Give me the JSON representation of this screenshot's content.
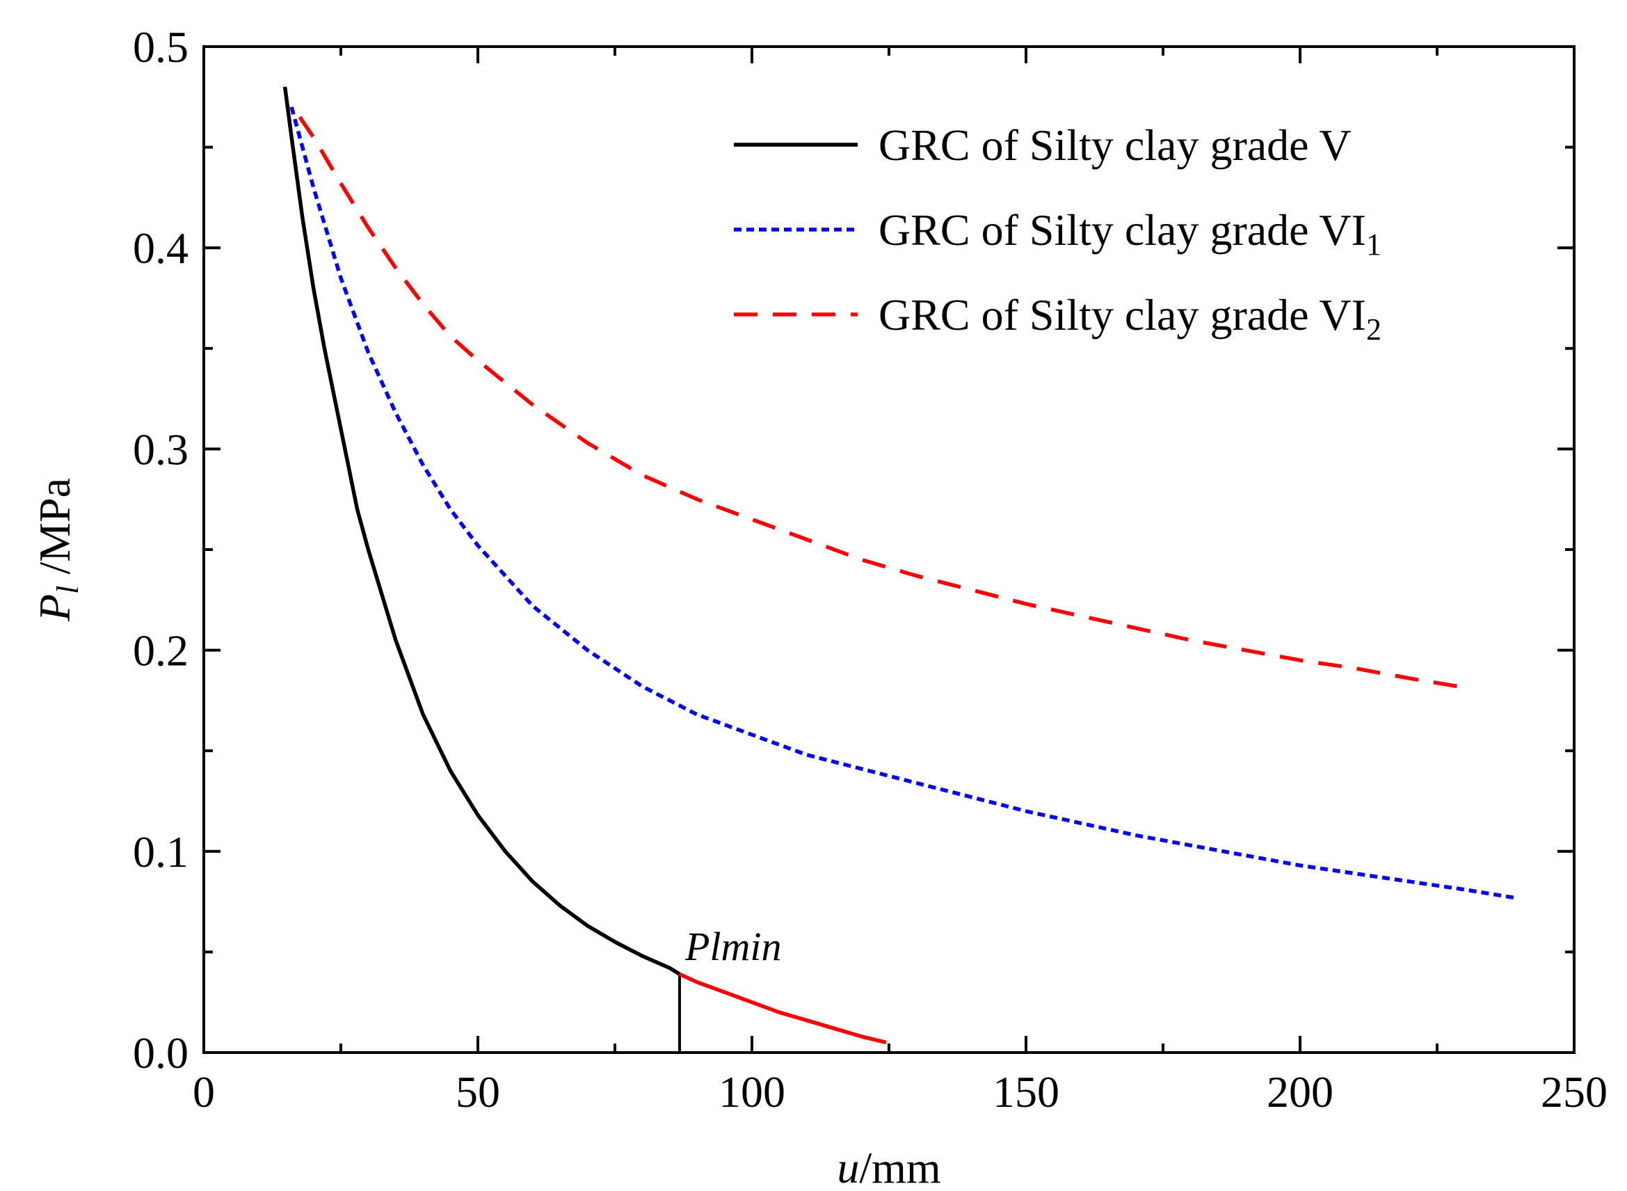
{
  "chart_data": {
    "type": "line",
    "title": "",
    "xlabel": {
      "var": "u",
      "unit": "/mm"
    },
    "ylabel": {
      "var": "P",
      "sub": "l",
      "unit": " /MPa"
    },
    "xlim": [
      0,
      250
    ],
    "ylim": [
      0,
      0.5
    ],
    "xticks": [
      0,
      50,
      100,
      150,
      200,
      250
    ],
    "xtick_labels": [
      "0",
      "50",
      "100",
      "150",
      "200",
      "250"
    ],
    "yticks": [
      0.0,
      0.1,
      0.2,
      0.3,
      0.4,
      0.5
    ],
    "ytick_labels": [
      "0.0",
      "0.1",
      "0.2",
      "0.3",
      "0.4",
      "0.5"
    ],
    "grid": false,
    "legend_position": "top-right",
    "series": [
      {
        "name": "GRC of Silty clay grade V",
        "legend_main": "GRC of Silty clay grade V",
        "legend_sub": "",
        "color": "#000000",
        "style": "solid",
        "x": [
          14.8,
          16,
          18,
          20,
          22,
          25,
          28,
          30,
          35,
          40,
          45,
          50,
          55,
          60,
          65,
          70,
          75,
          80,
          85,
          86.8
        ],
        "y": [
          0.48,
          0.455,
          0.415,
          0.38,
          0.35,
          0.31,
          0.27,
          0.25,
          0.205,
          0.168,
          0.14,
          0.118,
          0.1,
          0.085,
          0.073,
          0.063,
          0.055,
          0.048,
          0.042,
          0.039
        ]
      },
      {
        "name": "Plmin segment",
        "color": "#ff0000",
        "style": "solid",
        "x": [
          86.8,
          90,
          95,
          100,
          105,
          110,
          115,
          120,
          124.5
        ],
        "y": [
          0.039,
          0.035,
          0.03,
          0.025,
          0.02,
          0.016,
          0.012,
          0.008,
          0.005
        ]
      },
      {
        "name": "GRC of Silty clay grade VI1",
        "legend_main": "GRC of Silty clay grade VI",
        "legend_sub": "1",
        "color": "#0000ff",
        "style": "dotted",
        "x": [
          16,
          20,
          25,
          30,
          35,
          40,
          45,
          50,
          60,
          70,
          80,
          90,
          100,
          110,
          120,
          130,
          140,
          150,
          160,
          170,
          180,
          190,
          200,
          210,
          220,
          230,
          239
        ],
        "y": [
          0.47,
          0.43,
          0.385,
          0.348,
          0.318,
          0.292,
          0.27,
          0.252,
          0.222,
          0.2,
          0.182,
          0.168,
          0.158,
          0.148,
          0.141,
          0.134,
          0.127,
          0.12,
          0.114,
          0.108,
          0.103,
          0.098,
          0.093,
          0.089,
          0.085,
          0.081,
          0.077
        ]
      },
      {
        "name": "GRC of Silty clay grade VI2",
        "legend_main": "GRC of Silty clay grade VI",
        "legend_sub": "2",
        "color": "#ff0000",
        "style": "dashed",
        "x": [
          17.5,
          20,
          25,
          30,
          35,
          40,
          45,
          50,
          60,
          70,
          80,
          90,
          100,
          110,
          120,
          130,
          140,
          150,
          160,
          170,
          180,
          190,
          200,
          210,
          220,
          231
        ],
        "y": [
          0.465,
          0.455,
          0.432,
          0.41,
          0.39,
          0.372,
          0.356,
          0.344,
          0.322,
          0.303,
          0.287,
          0.275,
          0.265,
          0.255,
          0.245,
          0.237,
          0.23,
          0.223,
          0.217,
          0.211,
          0.205,
          0.2,
          0.195,
          0.191,
          0.186,
          0.181
        ]
      }
    ],
    "annotations": [
      {
        "text": "Plmin",
        "x": 86.8,
        "y": 0.039
      }
    ],
    "reference_lines": [
      {
        "x": 86.8,
        "y_from": 0.0,
        "y_to": 0.039,
        "color": "#000000"
      }
    ]
  }
}
